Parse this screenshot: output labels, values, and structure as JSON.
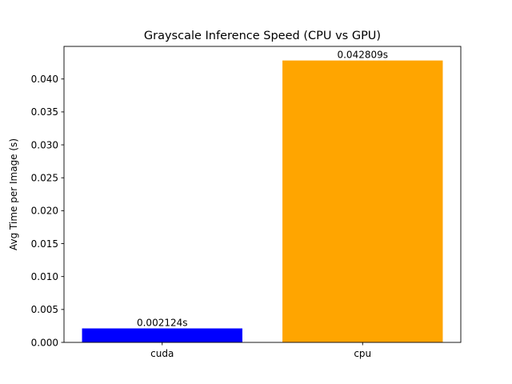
{
  "chart_data": {
    "type": "bar",
    "title": "Grayscale Inference Speed (CPU vs GPU)",
    "xlabel": "",
    "ylabel": "Avg Time per Image (s)",
    "categories": [
      "cuda",
      "cpu"
    ],
    "values": [
      0.002124,
      0.042809
    ],
    "data_labels": [
      "0.002124s",
      "0.042809s"
    ],
    "colors": [
      "#0000ff",
      "#ffa500"
    ],
    "ylim": [
      0,
      0.044949
    ],
    "yticks": [
      0,
      0.005,
      0.01,
      0.015,
      0.02,
      0.025,
      0.03,
      0.035,
      0.04
    ],
    "ytick_labels": [
      "0.000",
      "0.005",
      "0.010",
      "0.015",
      "0.020",
      "0.025",
      "0.030",
      "0.035",
      "0.040"
    ],
    "grid": false,
    "legend": "none"
  }
}
